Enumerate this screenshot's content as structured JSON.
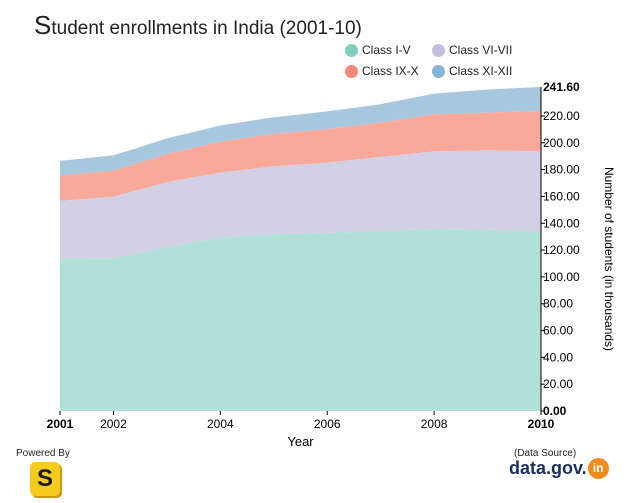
{
  "title": {
    "first_letter": "S",
    "rest": "tudent enrollments in India (2001-10)"
  },
  "chart_data": {
    "type": "area",
    "stacked": true,
    "x": [
      2001,
      2002,
      2003,
      2004,
      2005,
      2006,
      2007,
      2008,
      2009,
      2010
    ],
    "x_tick_labels": [
      "2001",
      "2002",
      "2004",
      "2006",
      "2008",
      "2010"
    ],
    "xlim": [
      2001,
      2010
    ],
    "xlabel": "Year",
    "ylabel": "Number of students (in thousands)",
    "ylim": [
      0,
      241.6
    ],
    "y_ticks": [
      0,
      20,
      40,
      60,
      80,
      100,
      120,
      140,
      160,
      180,
      200,
      220
    ],
    "y_tick_labels": [
      "0.00",
      "20.00",
      "40.00",
      "60.00",
      "80.00",
      "100.00",
      "120.00",
      "140.00",
      "160.00",
      "180.00",
      "200.00",
      "220.00"
    ],
    "y_max_label": "241.60",
    "y_axis_position": "right",
    "grid": false,
    "legend_position": "top-right",
    "series": [
      {
        "name": "Class I-V",
        "color": "#b0e0d8",
        "legend_color": "#7fcfbf",
        "values": [
          113.8,
          113.9,
          122.1,
          129.0,
          131.8,
          132.7,
          134.3,
          135.7,
          135.3,
          133.6
        ]
      },
      {
        "name": "Class VI-VII",
        "color": "#d3d0e5",
        "legend_color": "#c2bedd",
        "values": [
          42.8,
          45.9,
          48.4,
          48.8,
          50.7,
          52.4,
          55.2,
          57.8,
          59.2,
          60.0
        ]
      },
      {
        "name": "Class IX-X",
        "color": "#f9a99a",
        "legend_color": "#f4897a",
        "values": [
          19.0,
          19.4,
          21.1,
          23.1,
          24.1,
          25.1,
          25.5,
          27.8,
          28.0,
          30.2
        ]
      },
      {
        "name": "Class XI-XII",
        "color": "#a7c7de",
        "legend_color": "#86b3d6",
        "values": [
          10.9,
          11.4,
          11.7,
          12.0,
          12.5,
          13.2,
          13.8,
          15.4,
          17.2,
          17.8
        ]
      }
    ]
  },
  "footer": {
    "powered_by": "Powered By",
    "logo_letter": "S",
    "data_source": "(Data Source)",
    "brand_main": "data.gov.",
    "brand_in": "in"
  }
}
